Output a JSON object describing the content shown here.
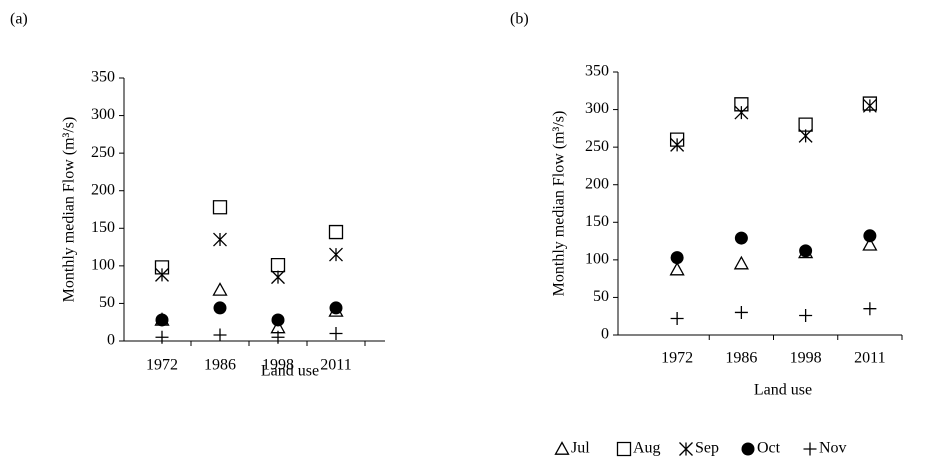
{
  "chart_data": [
    {
      "type": "scatter",
      "title": "(a)",
      "y_label": "Monthly median Flow (m³/s)",
      "x_label": "Land use",
      "categories": [
        "1972",
        "1986",
        "1998",
        "2011"
      ],
      "ylim": [
        0,
        350
      ],
      "yticks": [
        0,
        50,
        100,
        150,
        200,
        250,
        300,
        350
      ],
      "series": [
        {
          "marker": "triangle",
          "color": "#000000",
          "values": [
            28,
            68,
            18,
            40
          ]
        },
        {
          "marker": "square",
          "color": "#000000",
          "values": [
            98,
            178,
            101,
            145
          ]
        },
        {
          "marker": "asterisk",
          "color": "#000000",
          "values": [
            88,
            135,
            85,
            115
          ]
        },
        {
          "marker": "circle",
          "color": "#000000",
          "values": [
            28,
            44,
            28,
            44
          ]
        },
        {
          "marker": "plus",
          "color": "#000000",
          "values": [
            5,
            8,
            5,
            10
          ]
        }
      ]
    },
    {
      "type": "scatter",
      "title": "(b)",
      "y_label": "Monthly median Flow (m³/s)",
      "x_label": "Land use",
      "categories": [
        "1972",
        "1986",
        "1998",
        "2011"
      ],
      "ylim": [
        0,
        350
      ],
      "yticks": [
        0,
        50,
        100,
        150,
        200,
        250,
        300,
        350
      ],
      "series": [
        {
          "name": "Jul",
          "marker": "triangle",
          "color": "#000000",
          "values": [
            87,
            95,
            110,
            120
          ]
        },
        {
          "name": "Aug",
          "marker": "square",
          "color": "#000000",
          "values": [
            260,
            307,
            280,
            308
          ]
        },
        {
          "name": "Sep",
          "marker": "asterisk",
          "color": "#000000",
          "values": [
            253,
            296,
            265,
            305
          ]
        },
        {
          "name": "Oct",
          "marker": "circle",
          "color": "#000000",
          "values": [
            103,
            129,
            112,
            132
          ]
        },
        {
          "name": "Nov",
          "marker": "plus",
          "color": "#000000",
          "values": [
            22,
            30,
            26,
            35
          ]
        }
      ]
    }
  ]
}
